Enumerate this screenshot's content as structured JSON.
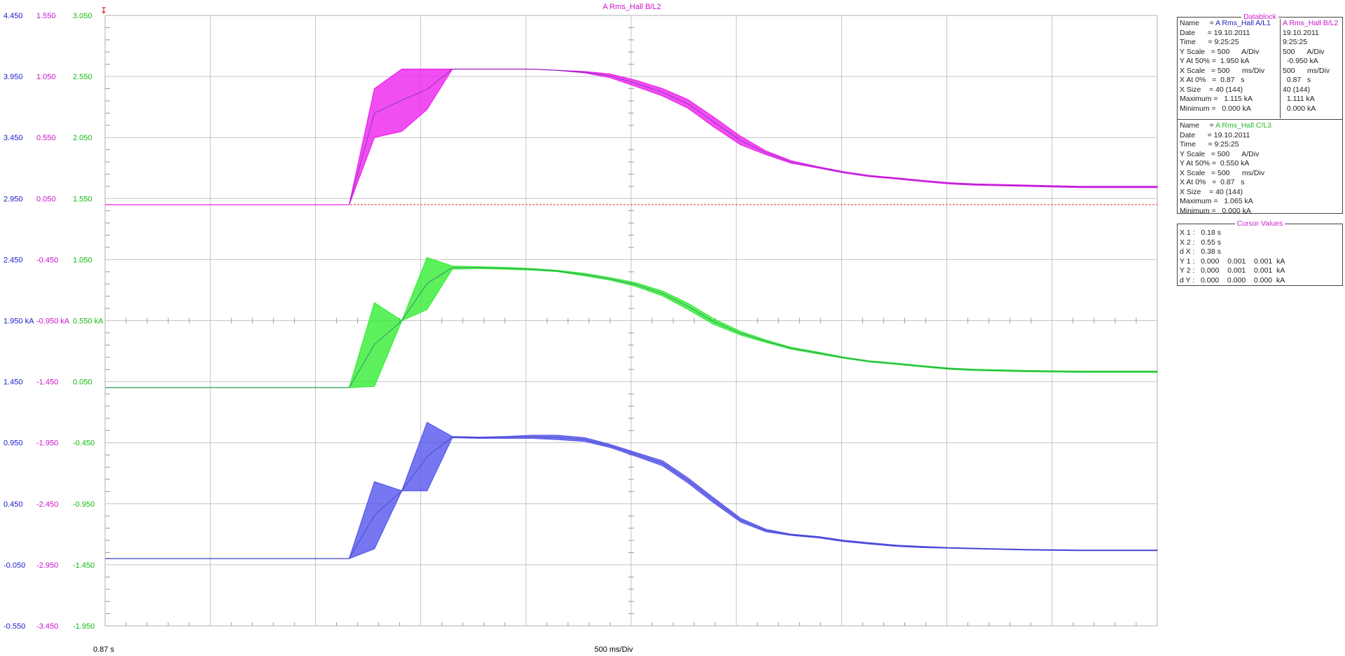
{
  "chart_data": {
    "type": "line",
    "title": "A Rms_Hall B/L2",
    "x_start_label": "0.87 s",
    "x_scale_label": "500 ms/Div",
    "x_range_s": [
      0.87,
      5.87
    ],
    "grid": true,
    "axes": [
      {
        "name": "A Rms_Hall A/L1",
        "color": "#1a1acc",
        "ticks": [
          "4.450",
          "3.950",
          "3.450",
          "2.950",
          "2.450",
          "1.950 kA",
          "1.450",
          "0.950",
          "0.450",
          "-0.050",
          "-0.550"
        ]
      },
      {
        "name": "A Rms_Hall B/L2",
        "color": "#cc11cc",
        "ticks": [
          "1.550",
          "1.050",
          "0.550",
          "0.050",
          "-0.450",
          "-0.950 kA",
          "-1.450",
          "-1.950",
          "-2.450",
          "-2.950",
          "-3.450"
        ]
      },
      {
        "name": "A Rms_Hall C/L3",
        "color": "#11bb11",
        "ticks": [
          "3.050",
          "2.550",
          "2.050",
          "1.550",
          "1.050",
          "0.550 kA",
          "0.050",
          "-0.450",
          "-0.950",
          "-1.450",
          "-1.950"
        ]
      }
    ],
    "series": [
      {
        "name": "A Rms_Hall B/L2",
        "color": "#ee22ee",
        "t": [
          0.87,
          2.03,
          2.15,
          2.28,
          2.4,
          2.52,
          2.65,
          2.77,
          2.9,
          3.02,
          3.15,
          3.27,
          3.39,
          3.52,
          3.64,
          3.76,
          3.89,
          4.01,
          4.13,
          4.26,
          4.38,
          4.5,
          4.63,
          4.75,
          4.88,
          5.0,
          5.25,
          5.5,
          5.87
        ],
        "upper": [
          null,
          0.0,
          0.95,
          1.11,
          1.11,
          1.11,
          1.11,
          1.11,
          1.11,
          1.1,
          1.09,
          1.07,
          1.02,
          0.95,
          0.86,
          0.72,
          0.56,
          0.44,
          0.36,
          0.31,
          0.27,
          0.24,
          0.22,
          0.2,
          0.18,
          0.17,
          0.16,
          0.15,
          0.15
        ],
        "lower": [
          null,
          0.0,
          0.55,
          0.6,
          0.78,
          1.11,
          1.11,
          1.11,
          1.11,
          1.1,
          1.08,
          1.04,
          0.97,
          0.89,
          0.79,
          0.64,
          0.49,
          0.41,
          0.34,
          0.3,
          0.26,
          0.23,
          0.21,
          0.19,
          0.17,
          0.16,
          0.15,
          0.14,
          0.14
        ]
      },
      {
        "name": "A Rms_Hall C/L3",
        "color": "#33ee33",
        "t": [
          0.87,
          2.03,
          2.15,
          2.28,
          2.4,
          2.52,
          2.65,
          2.77,
          2.9,
          3.02,
          3.15,
          3.27,
          3.39,
          3.52,
          3.64,
          3.76,
          3.89,
          4.01,
          4.13,
          4.26,
          4.38,
          4.5,
          4.63,
          4.75,
          4.88,
          5.0,
          5.25,
          5.5,
          5.87
        ],
        "upper": [
          0.0,
          0.0,
          0.695,
          0.548,
          1.065,
          0.995,
          0.99,
          0.985,
          0.975,
          0.96,
          0.935,
          0.9,
          0.86,
          0.79,
          0.69,
          0.565,
          0.46,
          0.39,
          0.33,
          0.29,
          0.25,
          0.22,
          0.2,
          0.18,
          0.16,
          0.15,
          0.14,
          0.135,
          0.135
        ],
        "lower": [
          0.0,
          0.0,
          0.01,
          0.548,
          0.64,
          0.97,
          0.975,
          0.97,
          0.962,
          0.95,
          0.915,
          0.88,
          0.83,
          0.75,
          0.64,
          0.52,
          0.43,
          0.37,
          0.315,
          0.275,
          0.24,
          0.21,
          0.19,
          0.17,
          0.15,
          0.14,
          0.13,
          0.125,
          0.125
        ]
      },
      {
        "name": "A Rms_Hall A/L1",
        "color": "#5555ee",
        "t": [
          0.87,
          2.03,
          2.15,
          2.28,
          2.4,
          2.52,
          2.65,
          2.77,
          2.9,
          3.02,
          3.15,
          3.27,
          3.39,
          3.52,
          3.64,
          3.76,
          3.89,
          4.01,
          4.13,
          4.26,
          4.38,
          4.5,
          4.63,
          4.75,
          4.88,
          5.0,
          5.25,
          5.5,
          5.87
        ],
        "upper": [
          0.0,
          0.0,
          0.63,
          0.555,
          1.115,
          1.0,
          0.995,
          1.0,
          1.01,
          1.01,
          0.99,
          0.935,
          0.87,
          0.8,
          0.66,
          0.5,
          0.33,
          0.24,
          0.2,
          0.18,
          0.15,
          0.13,
          0.11,
          0.1,
          0.09,
          0.085,
          0.075,
          0.07,
          0.07
        ],
        "lower": [
          0.0,
          0.0,
          0.08,
          0.555,
          0.555,
          0.99,
          0.985,
          0.985,
          0.985,
          0.975,
          0.96,
          0.91,
          0.84,
          0.76,
          0.62,
          0.46,
          0.3,
          0.22,
          0.19,
          0.17,
          0.14,
          0.12,
          0.1,
          0.09,
          0.085,
          0.08,
          0.07,
          0.065,
          0.065
        ]
      }
    ],
    "trigger_line": {
      "series": "A Rms_Hall B/L2",
      "style": "dashed",
      "color": "#dd3333"
    }
  },
  "datablock": {
    "title": "Datablock",
    "group1": {
      "col1_rows": [
        "Name     = A Rms_Hall A/L1",
        "Date      = 19.10.2011",
        "Time      = 9:25:25",
        "Y Scale   = 500      A/Div",
        "Y At 50% =  1.950 kA",
        "X Scale   = 500      ms/Div",
        "X At 0%   =  0.87   s",
        "X Size    = 40 (144)",
        "Maximum =   1.115 kA",
        "Minimum =   0.000 kA"
      ],
      "col2_rows": [
        "A Rms_Hall B/L2",
        "19.10.2011",
        "9:25:25",
        "500      A/Div",
        "  -0.950 kA",
        "500      ms/Div",
        "  0.87   s",
        "40 (144)",
        "  1.111 kA",
        "  0.000 kA"
      ],
      "col1_name_value": "A Rms_Hall A/L1",
      "col2_color": "#cc11cc",
      "col1_color": "#2222bb"
    },
    "group2": {
      "rows": [
        "Name     = A Rms_Hall C/L3",
        "Date      = 19.10.2011",
        "Time      = 9:25:25",
        "Y Scale   = 500      A/Div",
        "Y At 50% =  0.550 kA",
        "X Scale   = 500      ms/Div",
        "X At 0%   =  0.87   s",
        "X Size    = 40 (144)",
        "Maximum =   1.065 kA",
        "Minimum =   0.000 kA"
      ],
      "name_color": "#22bb22"
    }
  },
  "cursor_values": {
    "title": "Cursor Values",
    "rows": [
      "X 1 :   0.18 s",
      "X 2 :   0.55 s",
      "d X :   0.38 s",
      "Y 1 :   0.000    0.001    0.001  kA",
      "Y 2 :   0.000    0.001    0.001  kA",
      "d Y :   0.000    0.000    0.000  kA"
    ]
  }
}
